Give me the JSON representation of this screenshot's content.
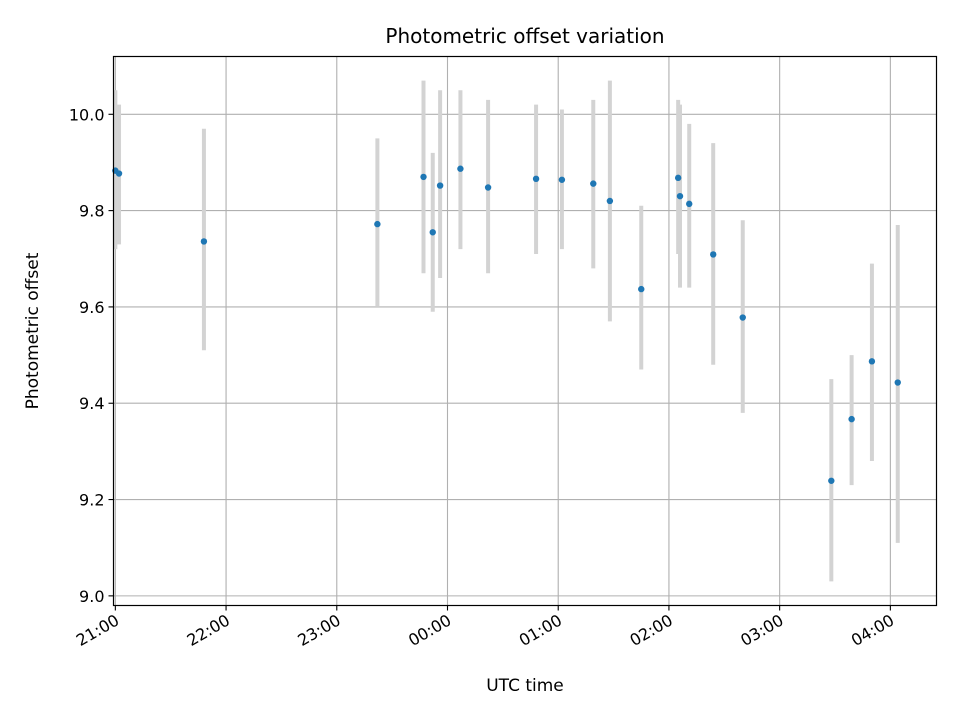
{
  "chart_data": {
    "type": "scatter",
    "title": "Photometric offset variation",
    "xlabel": "UTC time",
    "ylabel": "Photometric offset",
    "grid": true,
    "x_tick_labels": [
      "21:00",
      "22:00",
      "23:00",
      "00:00",
      "01:00",
      "02:00",
      "03:00",
      "04:00"
    ],
    "y_ticks": [
      "9.0",
      "9.2",
      "9.4",
      "9.6",
      "9.8",
      "10.0"
    ],
    "ylim": [
      8.98,
      10.12
    ],
    "xlim": [
      "20:59",
      "04:25"
    ],
    "colors": {
      "point": "#1f77b4",
      "errorbar": "#d3d3d3",
      "grid": "#b0b0b0"
    },
    "series": [
      {
        "x": [
          "21:00",
          "21:02",
          "21:48",
          "23:22",
          "23:47",
          "23:52",
          "23:56",
          "00:07",
          "00:22",
          "00:48",
          "01:02",
          "01:19",
          "01:28",
          "01:45",
          "02:05",
          "02:06",
          "02:11",
          "02:24",
          "02:40",
          "03:28",
          "03:39",
          "03:50",
          "04:04"
        ],
        "y": [
          9.883,
          9.877,
          9.736,
          9.772,
          9.87,
          9.755,
          9.852,
          9.887,
          9.848,
          9.866,
          9.864,
          9.856,
          9.82,
          9.637,
          9.868,
          9.83,
          9.814,
          9.709,
          9.578,
          9.239,
          9.367,
          9.487,
          9.443
        ],
        "y_lower": [
          9.72,
          9.73,
          9.51,
          9.6,
          9.67,
          9.59,
          9.66,
          9.72,
          9.67,
          9.71,
          9.72,
          9.68,
          9.57,
          9.47,
          9.71,
          9.64,
          9.64,
          9.48,
          9.38,
          9.03,
          9.23,
          9.28,
          9.11
        ],
        "y_upper": [
          10.05,
          10.02,
          9.97,
          9.95,
          10.07,
          9.92,
          10.05,
          10.05,
          10.03,
          10.02,
          10.01,
          10.03,
          10.07,
          9.81,
          10.03,
          10.02,
          9.98,
          9.94,
          9.78,
          9.45,
          9.5,
          9.69,
          9.77
        ]
      }
    ]
  }
}
